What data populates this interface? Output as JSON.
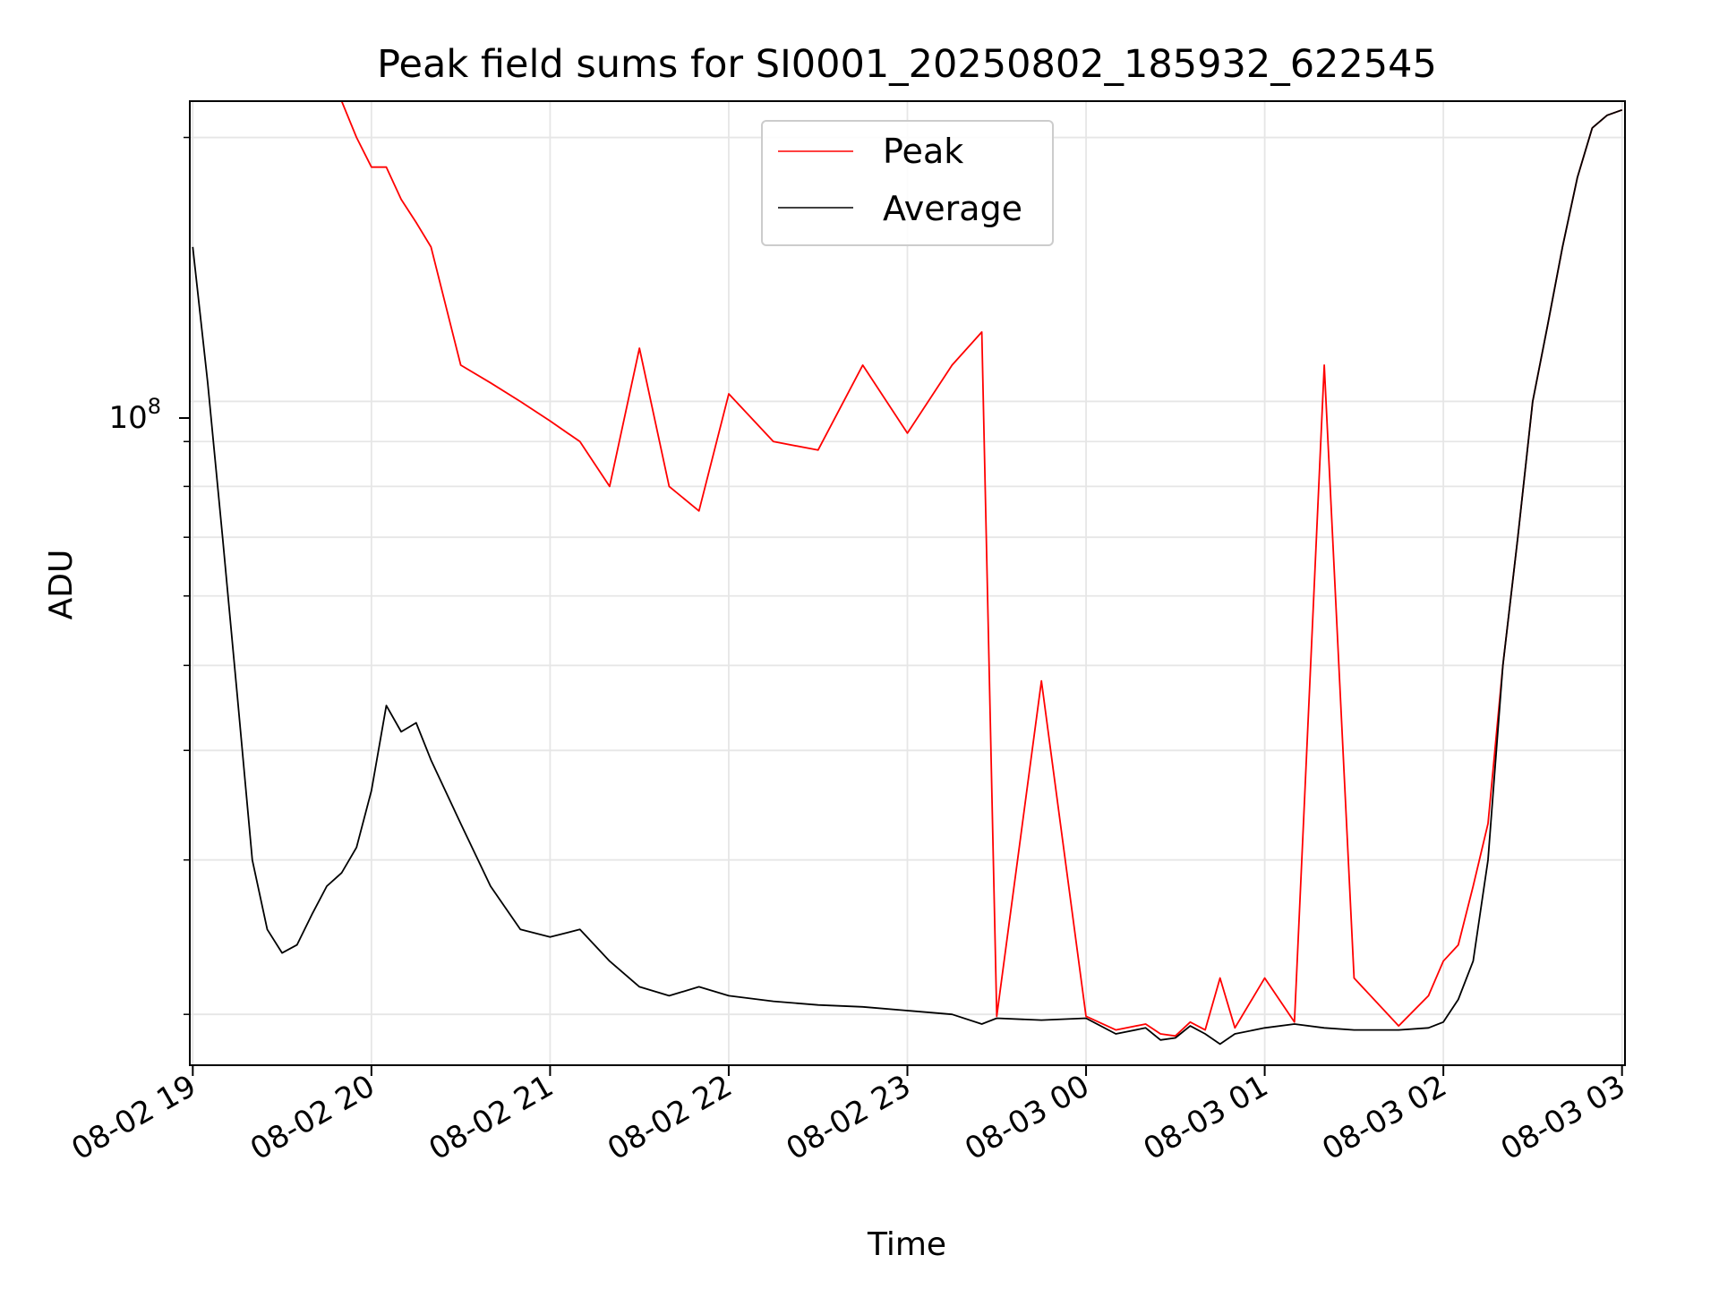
{
  "chart_data": {
    "type": "line",
    "title": "Peak field sums for SI0001_20250802_185932_622545",
    "xlabel": "Time",
    "ylabel": "ADU",
    "y_scale": "log",
    "y_tick_label": {
      "base": "10",
      "exponent": "8",
      "value": 100000000
    },
    "ylim": [
      17500000,
      220000000
    ],
    "x_tick_labels": [
      "08-02 19",
      "08-02 20",
      "08-02 21",
      "08-02 22",
      "08-02 23",
      "08-03 00",
      "08-03 01",
      "08-03 02",
      "08-03 03"
    ],
    "xlim": [
      "2025-08-02 18:59",
      "2025-08-03 03:01"
    ],
    "grid": true,
    "legend_location": "upper center",
    "x": [
      "2025-08-02 19:00",
      "2025-08-02 19:05",
      "2025-08-02 19:10",
      "2025-08-02 19:15",
      "2025-08-02 19:20",
      "2025-08-02 19:25",
      "2025-08-02 19:30",
      "2025-08-02 19:35",
      "2025-08-02 19:40",
      "2025-08-02 19:45",
      "2025-08-02 19:50",
      "2025-08-02 19:55",
      "2025-08-02 20:00",
      "2025-08-02 20:05",
      "2025-08-02 20:10",
      "2025-08-02 20:15",
      "2025-08-02 20:20",
      "2025-08-02 20:30",
      "2025-08-02 20:40",
      "2025-08-02 20:50",
      "2025-08-02 21:00",
      "2025-08-02 21:10",
      "2025-08-02 21:20",
      "2025-08-02 21:30",
      "2025-08-02 21:40",
      "2025-08-02 21:50",
      "2025-08-02 22:00",
      "2025-08-02 22:15",
      "2025-08-02 22:30",
      "2025-08-02 22:45",
      "2025-08-02 23:00",
      "2025-08-02 23:15",
      "2025-08-02 23:25",
      "2025-08-02 23:30",
      "2025-08-02 23:45",
      "2025-08-03 00:00",
      "2025-08-03 00:10",
      "2025-08-03 00:20",
      "2025-08-03 00:25",
      "2025-08-03 00:30",
      "2025-08-03 00:35",
      "2025-08-03 00:40",
      "2025-08-03 00:45",
      "2025-08-03 00:50",
      "2025-08-03 01:00",
      "2025-08-03 01:10",
      "2025-08-03 01:20",
      "2025-08-03 01:30",
      "2025-08-03 01:45",
      "2025-08-03 01:55",
      "2025-08-03 02:00",
      "2025-08-03 02:05",
      "2025-08-03 02:10",
      "2025-08-03 02:15",
      "2025-08-03 02:20",
      "2025-08-03 02:25",
      "2025-08-03 02:30",
      "2025-08-03 02:35",
      "2025-08-03 02:40",
      "2025-08-03 02:45",
      "2025-08-03 02:50",
      "2025-08-03 02:55",
      "2025-08-03 03:00"
    ],
    "series": [
      {
        "name": "Average",
        "color": "#000000",
        "values": [
          150000000,
          105000000,
          70000000,
          46000000,
          30000000,
          25000000,
          23500000,
          24000000,
          26000000,
          28000000,
          29000000,
          31000000,
          36000000,
          45000000,
          42000000,
          43000000,
          39000000,
          33000000,
          28000000,
          25000000,
          24500000,
          25000000,
          23000000,
          21500000,
          21000000,
          21500000,
          21000000,
          20700000,
          20500000,
          20400000,
          20200000,
          20000000,
          19500000,
          19800000,
          19700000,
          19800000,
          19000000,
          19300000,
          18700000,
          18800000,
          19400000,
          19000000,
          18500000,
          19000000,
          19300000,
          19500000,
          19300000,
          19200000,
          19200000,
          19300000,
          19600000,
          20800000,
          23000000,
          30000000,
          50000000,
          70000000,
          100000000,
          122000000,
          150000000,
          180000000,
          205000000,
          212000000,
          215000000
        ]
      },
      {
        "name": "Peak",
        "color": "#ff0000",
        "values": [
          220000000,
          220000000,
          220000000,
          220000000,
          220000000,
          220000000,
          220000000,
          220000000,
          220000000,
          220000000,
          220000000,
          200000000,
          185000000,
          185000000,
          170000000,
          160000000,
          150000000,
          110000000,
          105000000,
          100000000,
          95000000,
          90000000,
          80000000,
          115000000,
          80000000,
          75000000,
          102000000,
          90000000,
          88000000,
          110000000,
          92000000,
          110000000,
          120000000,
          19900000,
          48000000,
          19900000,
          19200000,
          19500000,
          19000000,
          18900000,
          19600000,
          19200000,
          22000000,
          19300000,
          22000000,
          19600000,
          110000000,
          22000000,
          19400000,
          21000000,
          23000000,
          24000000,
          28000000,
          33000000,
          50000000,
          70000000,
          100000000,
          122000000,
          150000000,
          180000000,
          205000000,
          212000000,
          215000000
        ]
      }
    ]
  }
}
